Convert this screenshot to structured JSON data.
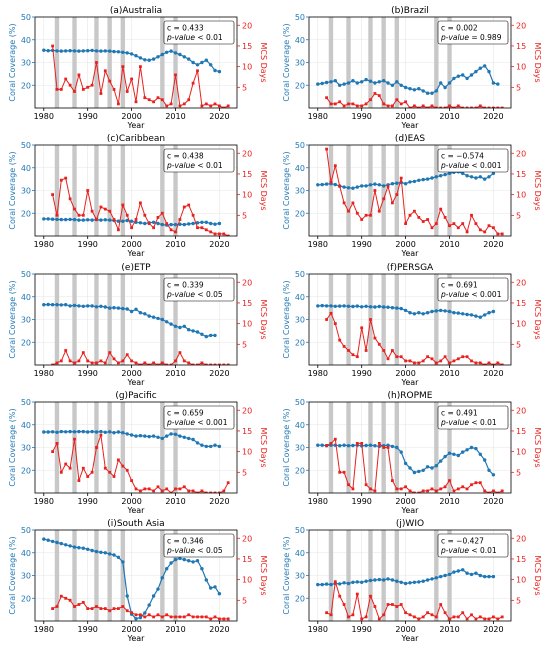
{
  "figure": {
    "xlabel": "Year",
    "ylabel_left": "Coral Coverage (%)",
    "ylabel_right": "MCS Days",
    "xticks": [
      1980,
      1990,
      2000,
      2010,
      2020
    ],
    "xlim": [
      1978,
      2024
    ],
    "colors": {
      "coral": "#1f77b4",
      "mcs": "#e8211e",
      "band": "#c8c8c8"
    },
    "el_nino_bands": [
      [
        1982.5,
        1983.5
      ],
      [
        1986.5,
        1987.5
      ],
      [
        1991.5,
        1992.5
      ],
      [
        1994.5,
        1995.5
      ],
      [
        1997.5,
        1998.5
      ],
      [
        2006.5,
        2007.5
      ],
      [
        2009.5,
        2010.5
      ]
    ]
  },
  "chart_data": [
    {
      "type": "line",
      "title": "(a)Australia",
      "stat": "c = 0.433",
      "pvalue": "p-value < 0.01",
      "ylim_left": [
        10,
        50
      ],
      "yticks_left": [
        20,
        30,
        40,
        50
      ],
      "ylim_right": [
        0,
        22
      ],
      "yticks_right": [
        5,
        10,
        15,
        20
      ],
      "coral": {
        "x0": 1980,
        "values": [
          35.4,
          35.2,
          35.3,
          35.1,
          35.0,
          35.1,
          35.2,
          35.1,
          35.0,
          35.1,
          35.2,
          35.3,
          35.1,
          35.0,
          35.1,
          35.0,
          34.8,
          34.7,
          34.5,
          34.2,
          33.8,
          33.0,
          32.0,
          31.2,
          31.0,
          31.5,
          32.5,
          33.5,
          34.5,
          35.0,
          34.2,
          33.5,
          32.5,
          31.5,
          30.0,
          29.0,
          30.0,
          31.0,
          29.0,
          26.5,
          26.0
        ]
      },
      "mcs": {
        "x0": 1982,
        "values": [
          15.0,
          4.5,
          4.5,
          7.0,
          5.5,
          4.0,
          8.0,
          4.5,
          5.0,
          5.5,
          11.0,
          3.5,
          9.0,
          6.5,
          4.5,
          1.0,
          10.0,
          4.0,
          7.0,
          1.5,
          10.0,
          2.5,
          2.0,
          1.5,
          2.5,
          2.0,
          0.5,
          1.0,
          8.0,
          0.5,
          1.0,
          2.0,
          6.0,
          9.0,
          0.5,
          1.0,
          0.5,
          1.0,
          0.5,
          0.0,
          0.5
        ]
      }
    },
    {
      "type": "line",
      "title": "(b)Brazil",
      "stat": "c = 0.002",
      "pvalue": "p-value = 0.989",
      "ylim_left": [
        10,
        50
      ],
      "yticks_left": [
        20,
        30,
        40,
        50
      ],
      "ylim_right": [
        0,
        22
      ],
      "yticks_right": [
        5,
        10,
        15,
        20
      ],
      "coral": {
        "x0": 1980,
        "values": [
          20.5,
          20.8,
          21.2,
          21.5,
          22.0,
          20.0,
          20.5,
          21.0,
          22.0,
          21.0,
          21.5,
          22.5,
          21.8,
          21.0,
          21.5,
          22.0,
          21.0,
          20.0,
          21.5,
          20.0,
          19.0,
          18.5,
          18.0,
          18.5,
          17.5,
          16.5,
          16.5,
          17.5,
          21.0,
          19.0,
          21.0,
          23.0,
          24.0,
          24.5,
          23.0,
          24.5,
          26.0,
          27.5,
          28.5,
          26.0,
          21.0,
          20.5
        ]
      },
      "mcs": {
        "x0": 1982,
        "values": [
          2.5,
          1.0,
          1.0,
          1.5,
          0.5,
          1.0,
          1.0,
          0.5,
          0.5,
          1.0,
          2.0,
          3.5,
          3.0,
          1.0,
          0.5,
          0.5,
          2.0,
          1.0,
          1.5,
          0.0,
          0.5,
          0.0,
          0.5,
          0.0,
          0.5,
          0.0,
          0.0,
          0.0,
          0.5,
          0.0,
          0.5,
          0.0,
          0.0,
          0.0,
          0.0,
          0.5,
          0.0,
          0.0,
          0.0,
          0.0,
          0.0
        ]
      }
    },
    {
      "type": "line",
      "title": "(c)Caribbean",
      "stat": "c = 0.438",
      "pvalue": "p-value < 0.01",
      "ylim_left": [
        10,
        50
      ],
      "yticks_left": [
        20,
        30,
        40,
        50
      ],
      "ylim_right": [
        0,
        22
      ],
      "yticks_right": [
        5,
        10,
        15,
        20
      ],
      "coral": {
        "x0": 1980,
        "values": [
          17.5,
          17.5,
          17.4,
          17.3,
          17.2,
          17.2,
          17.3,
          17.2,
          17.0,
          17.0,
          17.1,
          17.0,
          17.2,
          17.0,
          17.1,
          17.0,
          16.8,
          16.5,
          16.5,
          16.8,
          16.5,
          16.0,
          15.8,
          15.5,
          15.8,
          16.0,
          15.5,
          15.0,
          14.8,
          15.0,
          15.0,
          15.2,
          15.0,
          15.3,
          15.5,
          15.8,
          16.0,
          16.0,
          15.5,
          15.2,
          15.5
        ]
      },
      "mcs": {
        "x0": 1982,
        "values": [
          10.0,
          5.0,
          13.5,
          14.0,
          9.0,
          6.5,
          5.0,
          5.0,
          11.0,
          6.0,
          4.0,
          7.0,
          6.5,
          6.0,
          4.0,
          1.5,
          7.5,
          5.0,
          2.0,
          4.0,
          8.0,
          5.0,
          3.0,
          2.0,
          4.5,
          5.5,
          3.0,
          1.5,
          1.0,
          4.0,
          7.0,
          7.5,
          5.0,
          2.0,
          2.0,
          1.5,
          1.0,
          0.5,
          0.5,
          0.5,
          0.0
        ]
      }
    },
    {
      "type": "line",
      "title": "(d)EAS",
      "stat": "c = −0.574",
      "pvalue": "p-value < 0.001",
      "ylim_left": [
        10,
        50
      ],
      "yticks_left": [
        20,
        30,
        40,
        50
      ],
      "ylim_right": [
        0,
        22
      ],
      "yticks_right": [
        5,
        10,
        15,
        20
      ],
      "coral": {
        "x0": 1980,
        "values": [
          32.5,
          32.6,
          32.8,
          33.0,
          32.6,
          32.0,
          31.5,
          31.2,
          31.0,
          31.5,
          32.0,
          32.0,
          32.5,
          32.8,
          32.5,
          32.0,
          32.5,
          33.0,
          33.2,
          33.5,
          33.0,
          33.8,
          34.0,
          34.5,
          34.8,
          35.0,
          35.5,
          36.0,
          36.5,
          37.0,
          37.5,
          38.0,
          38.2,
          37.5,
          36.5,
          36.0,
          35.5,
          36.0,
          35.0,
          36.0,
          37.5
        ]
      },
      "mcs": {
        "x0": 1982,
        "values": [
          21.0,
          13.0,
          17.0,
          12.0,
          8.0,
          6.0,
          8.0,
          5.5,
          4.0,
          5.0,
          5.0,
          11.0,
          6.0,
          9.0,
          12.0,
          8.0,
          10.0,
          14.0,
          3.0,
          5.0,
          6.0,
          4.5,
          3.5,
          4.0,
          2.0,
          3.0,
          6.5,
          4.5,
          2.5,
          3.0,
          2.0,
          3.0,
          1.0,
          5.0,
          3.0,
          1.5,
          1.0,
          2.5,
          2.0,
          0.5,
          0.5
        ]
      }
    },
    {
      "type": "line",
      "title": "(e)ETP",
      "stat": "c = 0.339",
      "pvalue": "p-value < 0.05",
      "ylim_left": [
        10,
        50
      ],
      "yticks_left": [
        20,
        30,
        40,
        50
      ],
      "ylim_right": [
        0,
        22
      ],
      "yticks_right": [
        5,
        10,
        15,
        20
      ],
      "coral": {
        "x0": 1980,
        "values": [
          36.5,
          36.6,
          36.5,
          36.5,
          36.4,
          36.5,
          36.0,
          36.2,
          36.0,
          35.8,
          36.0,
          36.0,
          35.6,
          35.8,
          35.5,
          35.0,
          35.2,
          35.0,
          34.8,
          34.6,
          33.5,
          34.5,
          33.0,
          32.5,
          31.5,
          31.0,
          30.5,
          30.0,
          29.0,
          28.0,
          27.0,
          26.5,
          27.0,
          25.5,
          25.0,
          24.5,
          23.5,
          22.5,
          23.0,
          23.0
        ]
      },
      "mcs": {
        "x0": 1982,
        "values": [
          0.0,
          0.5,
          1.0,
          3.5,
          1.0,
          0.5,
          1.0,
          3.0,
          1.0,
          0.5,
          0.5,
          1.0,
          0.5,
          3.0,
          1.5,
          0.5,
          1.0,
          2.5,
          1.0,
          0.5,
          0.0,
          0.5,
          0.0,
          0.5,
          0.0,
          0.5,
          0.0,
          0.0,
          1.0,
          3.0,
          1.0,
          0.5,
          0.0,
          0.0,
          0.5,
          0.0,
          0.0,
          0.0,
          0.0,
          0.0,
          0.0
        ]
      }
    },
    {
      "type": "line",
      "title": "(f)PERSGA",
      "stat": "c = 0.691",
      "pvalue": "p-value < 0.001",
      "ylim_left": [
        10,
        50
      ],
      "yticks_left": [
        20,
        30,
        40,
        50
      ],
      "ylim_right": [
        0,
        22
      ],
      "yticks_right": [
        5,
        10,
        15,
        20
      ],
      "coral": {
        "x0": 1980,
        "values": [
          36.0,
          36.1,
          36.0,
          36.0,
          35.8,
          35.9,
          36.0,
          35.8,
          35.7,
          35.9,
          35.6,
          35.8,
          35.6,
          35.5,
          35.7,
          35.5,
          35.4,
          35.2,
          35.0,
          34.8,
          34.0,
          33.0,
          32.5,
          33.0,
          32.5,
          33.0,
          33.5,
          33.8,
          34.0,
          33.8,
          33.5,
          33.0,
          32.8,
          32.5,
          32.2,
          32.0,
          31.5,
          31.0,
          32.0,
          33.0,
          33.5
        ]
      },
      "mcs": {
        "x0": 1982,
        "values": [
          11.0,
          12.5,
          10.0,
          6.0,
          4.5,
          3.5,
          2.5,
          2.0,
          9.0,
          3.5,
          11.0,
          6.5,
          5.0,
          3.5,
          1.5,
          3.5,
          2.0,
          2.0,
          1.0,
          1.0,
          0.5,
          0.5,
          1.0,
          2.0,
          1.5,
          0.5,
          1.0,
          2.0,
          0.5,
          1.0,
          1.5,
          2.0,
          2.0,
          1.0,
          0.5,
          0.5,
          0.0,
          0.5,
          0.0,
          0.5,
          0.0
        ]
      }
    },
    {
      "type": "line",
      "title": "(g)Pacific",
      "stat": "c = 0.659",
      "pvalue": "p-value < 0.001",
      "ylim_left": [
        10,
        50
      ],
      "yticks_left": [
        20,
        30,
        40,
        50
      ],
      "ylim_right": [
        0,
        22
      ],
      "yticks_right": [
        5,
        10,
        15,
        20
      ],
      "coral": {
        "x0": 1980,
        "values": [
          36.8,
          36.8,
          36.9,
          36.7,
          37.0,
          36.9,
          37.0,
          36.9,
          37.0,
          37.0,
          36.8,
          37.0,
          36.8,
          37.0,
          36.7,
          36.9,
          36.5,
          36.8,
          36.5,
          36.0,
          35.5,
          35.0,
          35.2,
          35.0,
          34.8,
          35.0,
          34.5,
          34.0,
          35.0,
          36.0,
          35.8,
          35.0,
          34.5,
          34.0,
          33.5,
          32.0,
          31.0,
          30.5,
          30.5,
          31.0,
          30.5
        ]
      },
      "mcs": {
        "x0": 1982,
        "values": [
          10.0,
          12.0,
          5.0,
          7.0,
          6.0,
          13.0,
          3.0,
          6.0,
          4.0,
          5.0,
          11.0,
          14.0,
          6.0,
          5.0,
          4.0,
          8.0,
          6.5,
          5.5,
          3.0,
          1.0,
          0.5,
          1.0,
          1.0,
          0.5,
          1.5,
          0.5,
          1.0,
          0.0,
          1.0,
          1.0,
          1.5,
          0.5,
          0.5,
          0.0,
          0.5,
          0.0,
          0.0,
          0.0,
          0.0,
          0.5,
          2.5
        ]
      }
    },
    {
      "type": "line",
      "title": "(h)ROPME",
      "stat": "c = 0.491",
      "pvalue": "p-value < 0.01",
      "ylim_left": [
        10,
        50
      ],
      "yticks_left": [
        20,
        30,
        40,
        50
      ],
      "ylim_right": [
        0,
        22
      ],
      "yticks_right": [
        5,
        10,
        15,
        20
      ],
      "coral": {
        "x0": 1980,
        "values": [
          31.0,
          31.0,
          30.8,
          31.0,
          31.0,
          30.8,
          31.0,
          30.8,
          30.9,
          31.0,
          30.7,
          30.9,
          31.0,
          30.8,
          30.5,
          30.8,
          31.0,
          30.5,
          30.0,
          28.0,
          23.0,
          21.0,
          19.0,
          19.5,
          20.0,
          21.5,
          21.0,
          22.0,
          24.0,
          26.0,
          27.5,
          27.0,
          26.5,
          28.0,
          29.0,
          30.0,
          29.5,
          27.0,
          24.5,
          20.0,
          18.0
        ]
      },
      "mcs": {
        "x0": 1982,
        "values": [
          11.5,
          12.0,
          13.0,
          5.0,
          5.0,
          2.0,
          1.0,
          12.0,
          12.0,
          2.0,
          1.0,
          0.5,
          12.0,
          11.0,
          11.0,
          3.0,
          1.0,
          1.0,
          1.5,
          0.5,
          0.0,
          0.0,
          0.5,
          0.5,
          1.0,
          0.5,
          1.0,
          1.5,
          3.0,
          0.5,
          1.0,
          1.5,
          1.0,
          2.0,
          2.5,
          2.5,
          0.5,
          0.0,
          0.5,
          0.0,
          0.5
        ]
      }
    },
    {
      "type": "line",
      "title": "(i)South Asia",
      "stat": "c = 0.346",
      "pvalue": "p-value < 0.05",
      "ylim_left": [
        10,
        50
      ],
      "yticks_left": [
        20,
        30,
        40,
        50
      ],
      "ylim_right": [
        0,
        22
      ],
      "yticks_right": [
        5,
        10,
        15,
        20
      ],
      "coral": {
        "x0": 1980,
        "values": [
          46.0,
          45.5,
          45.0,
          44.5,
          44.0,
          43.5,
          43.0,
          42.5,
          42.2,
          42.0,
          41.5,
          41.0,
          40.5,
          40.2,
          40.0,
          39.5,
          39.0,
          38.0,
          36.0,
          21.0,
          13.0,
          11.0,
          11.5,
          13.5,
          17.0,
          21.0,
          24.0,
          29.0,
          33.0,
          35.5,
          37.0,
          37.5,
          37.0,
          36.5,
          36.0,
          36.5,
          33.0,
          28.0,
          24.5,
          25.0,
          22.0
        ]
      },
      "mcs": {
        "x0": 1982,
        "values": [
          3.0,
          3.5,
          6.0,
          5.5,
          5.0,
          3.5,
          4.0,
          4.5,
          3.0,
          3.0,
          3.5,
          3.0,
          3.0,
          2.5,
          3.0,
          3.0,
          3.5,
          2.5,
          2.0,
          1.5,
          1.5,
          1.0,
          1.5,
          1.0,
          1.5,
          1.0,
          1.5,
          1.0,
          1.0,
          1.0,
          1.0,
          1.5,
          1.0,
          1.0,
          1.0,
          1.0,
          0.5,
          1.0,
          0.5,
          0.5,
          0.5
        ]
      }
    },
    {
      "type": "line",
      "title": "(j)WIO",
      "stat": "c = −0.427",
      "pvalue": "p-value < 0.01",
      "ylim_left": [
        10,
        50
      ],
      "yticks_left": [
        20,
        30,
        40,
        50
      ],
      "ylim_right": [
        0,
        22
      ],
      "yticks_right": [
        5,
        10,
        15,
        20
      ],
      "coral": {
        "x0": 1980,
        "values": [
          26.0,
          26.0,
          26.2,
          26.0,
          26.5,
          26.3,
          26.8,
          26.5,
          27.0,
          27.2,
          27.0,
          27.5,
          27.8,
          28.0,
          28.2,
          28.0,
          28.5,
          28.0,
          27.5,
          27.0,
          26.5,
          26.8,
          27.0,
          27.2,
          27.5,
          28.0,
          28.5,
          29.0,
          29.5,
          30.0,
          30.5,
          31.5,
          32.0,
          32.5,
          31.0,
          30.5,
          31.0,
          30.0,
          29.5,
          29.5,
          29.5
        ]
      },
      "mcs": {
        "x0": 1982,
        "values": [
          2.0,
          1.5,
          9.5,
          6.0,
          4.0,
          1.0,
          1.5,
          6.5,
          0.5,
          1.0,
          6.0,
          3.5,
          0.5,
          1.5,
          4.0,
          4.0,
          3.5,
          4.0,
          2.0,
          1.5,
          1.0,
          0.5,
          1.0,
          2.0,
          1.5,
          1.0,
          4.0,
          2.0,
          0.5,
          1.0,
          1.0,
          2.0,
          0.5,
          1.5,
          0.5,
          1.0,
          0.5,
          0.5,
          1.0,
          0.5,
          1.0
        ]
      }
    }
  ]
}
